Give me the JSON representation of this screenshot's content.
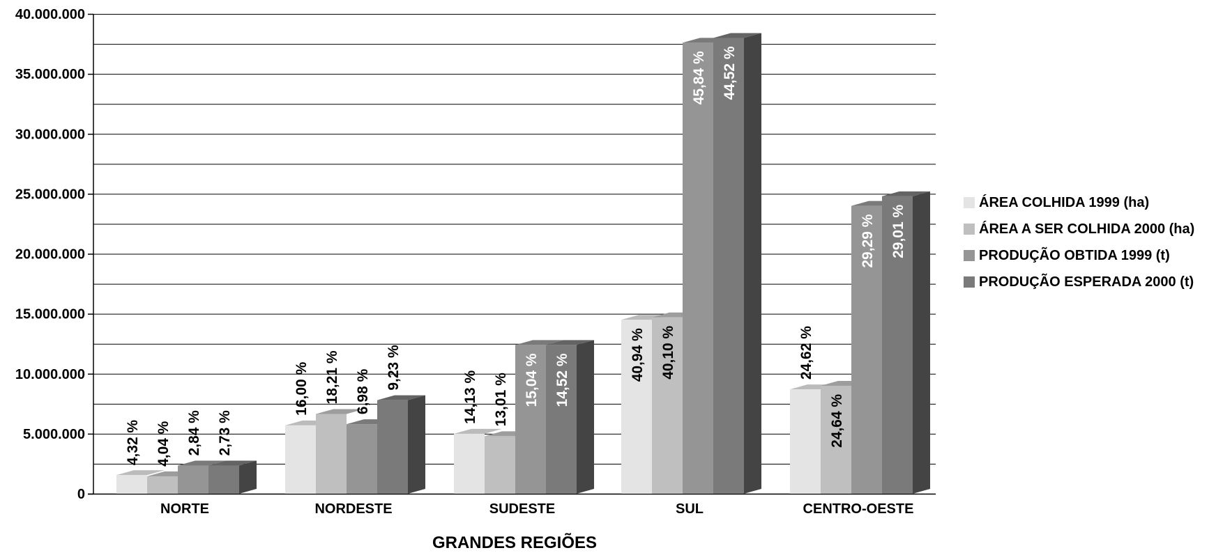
{
  "chart_data": {
    "type": "bar",
    "style": "3d-grouped",
    "title": "",
    "xlabel": "GRANDES REGIÕES",
    "ylabel": "",
    "ylim": [
      0,
      40000000
    ],
    "yticks": [
      "0",
      "5.000.000",
      "10.000.000",
      "15.000.000",
      "20.000.000",
      "25.000.000",
      "30.000.000",
      "35.000.000",
      "40.000.000"
    ],
    "ytick_values": [
      0,
      5000000,
      10000000,
      15000000,
      20000000,
      25000000,
      30000000,
      35000000,
      40000000
    ],
    "grid": true,
    "legend_position": "right",
    "categories": [
      "NORTE",
      "NORDESTE",
      "SUDESTE",
      "SUL",
      "CENTRO-OESTE"
    ],
    "series": [
      {
        "name": "ÁREA COLHIDA 1999 (ha)",
        "color": "#e4e4e4",
        "values": [
          1550000,
          5700000,
          5000000,
          14500000,
          8700000
        ],
        "labels": [
          "4,32 %",
          "16,00 %",
          "14,13 %",
          "40,94 %",
          "24,62 %"
        ]
      },
      {
        "name": "ÁREA A SER COLHIDA 2000 (ha)",
        "color": "#bfbfbf",
        "values": [
          1450000,
          6650000,
          4800000,
          14700000,
          9000000
        ],
        "labels": [
          "4,04 %",
          "18,21 %",
          "13,01 %",
          "40,10 %",
          "24,64 %"
        ]
      },
      {
        "name": "PRODUÇÃO OBTIDA 1999 (t)",
        "color": "#959595",
        "values": [
          2350000,
          5800000,
          12400000,
          37600000,
          24000000
        ],
        "labels": [
          "2,84 %",
          "6,98 %",
          "15,04 %",
          "45,84 %",
          "29,29 %"
        ]
      },
      {
        "name": "PRODUÇÃO ESPERADA 2000 (t)",
        "color": "#7a7a7a",
        "values": [
          2350000,
          7800000,
          12400000,
          38000000,
          24800000
        ],
        "labels": [
          "2,73 %",
          "9,23 %",
          "14,52 %",
          "44,52 %",
          "29,01 %"
        ]
      }
    ]
  }
}
